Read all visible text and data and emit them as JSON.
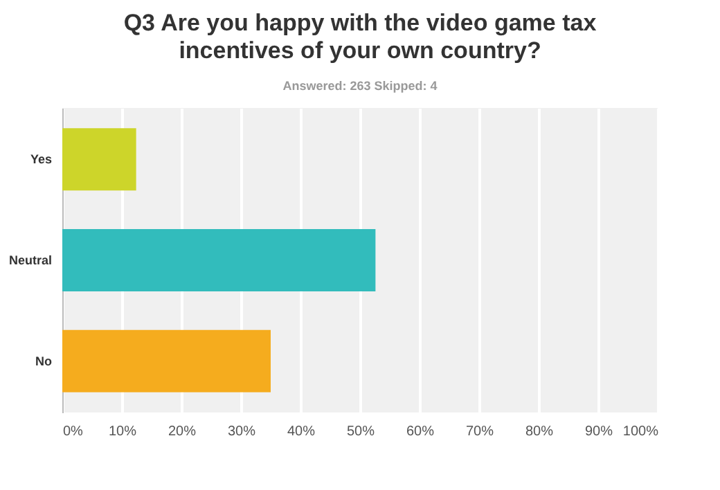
{
  "chart_data": {
    "type": "bar",
    "orientation": "horizontal",
    "title": "Q3 Are you happy with the video game tax incentives of your own country?",
    "subtitle": "Answered: 263    Skipped: 4",
    "categories": [
      "Yes",
      "Neutral",
      "No"
    ],
    "values": [
      12.4,
      52.6,
      35.0
    ],
    "colors": [
      "#cdd52a",
      "#32bcbc",
      "#f5ac1e"
    ],
    "xlim": [
      0,
      100
    ],
    "xticks": [
      {
        "value": 0,
        "label": "0%"
      },
      {
        "value": 10,
        "label": "10%"
      },
      {
        "value": 20,
        "label": "20%"
      },
      {
        "value": 30,
        "label": "30%"
      },
      {
        "value": 40,
        "label": "40%"
      },
      {
        "value": 50,
        "label": "50%"
      },
      {
        "value": 60,
        "label": "60%"
      },
      {
        "value": 70,
        "label": "70%"
      },
      {
        "value": 80,
        "label": "80%"
      },
      {
        "value": 90,
        "label": "90%"
      },
      {
        "value": 100,
        "label": "100%"
      }
    ],
    "grid": "x"
  }
}
